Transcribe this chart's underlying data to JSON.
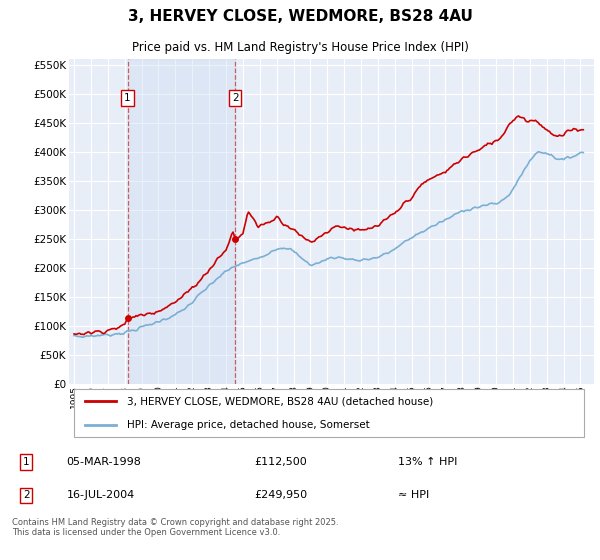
{
  "title": "3, HERVEY CLOSE, WEDMORE, BS28 4AU",
  "subtitle": "Price paid vs. HM Land Registry's House Price Index (HPI)",
  "property_label": "3, HERVEY CLOSE, WEDMORE, BS28 4AU (detached house)",
  "hpi_label": "HPI: Average price, detached house, Somerset",
  "sale1_date": "05-MAR-1998",
  "sale1_price": "£112,500",
  "sale1_note": "13% ↑ HPI",
  "sale2_date": "16-JUL-2004",
  "sale2_price": "£249,950",
  "sale2_note": "≈ HPI",
  "footer": "Contains HM Land Registry data © Crown copyright and database right 2025.\nThis data is licensed under the Open Government Licence v3.0.",
  "property_color": "#cc0000",
  "hpi_color": "#7bafd4",
  "plot_background": "#e8eef8",
  "grid_color": "#ffffff",
  "ylim": [
    0,
    560000
  ],
  "yticks": [
    0,
    50000,
    100000,
    150000,
    200000,
    250000,
    300000,
    350000,
    400000,
    450000,
    500000,
    550000
  ],
  "sale1_x": 1998.17,
  "sale1_y": 112500,
  "sale2_x": 2004.54,
  "sale2_y": 249950,
  "vline1_x": 1998.17,
  "vline2_x": 2004.54,
  "xlim_left": 1994.7,
  "xlim_right": 2025.8
}
